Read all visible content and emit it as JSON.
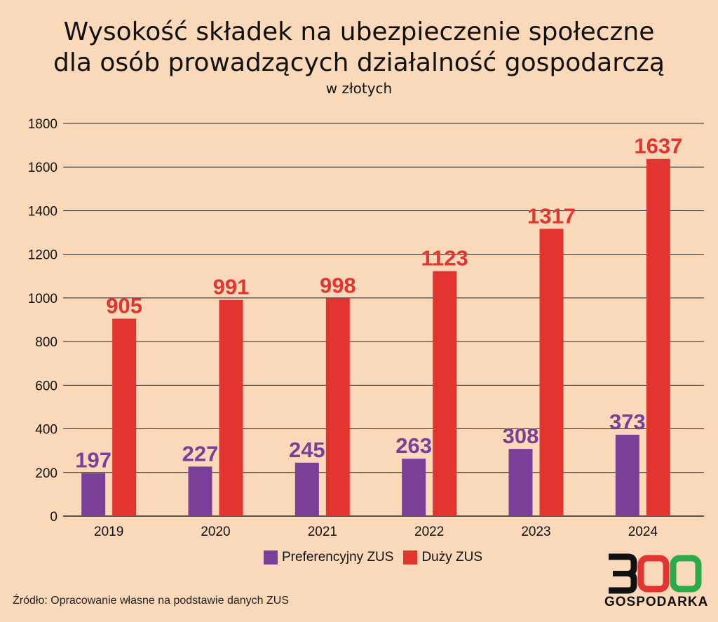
{
  "header": {
    "title_line1": "Wysokość składek na ubezpieczenie społeczne",
    "title_line2": "dla osób prowadzących działalność gospodarczą",
    "subtitle": "w złotych"
  },
  "legend": {
    "items": [
      {
        "label": "Preferencyjny ZUS",
        "color": "#7a3f96"
      },
      {
        "label": "Duży ZUS",
        "color": "#e33530"
      }
    ]
  },
  "source": "Źródło: Opracowanie własne na podstawie danych ZUS",
  "logo": {
    "text": "GOSPODARKA",
    "digits": "300"
  },
  "chart_data": {
    "type": "bar",
    "categories": [
      "2019",
      "2020",
      "2021",
      "2022",
      "2023",
      "2024"
    ],
    "series": [
      {
        "name": "Preferencyjny ZUS",
        "color": "#7a3f96",
        "values": [
          197,
          227,
          245,
          263,
          308,
          373
        ]
      },
      {
        "name": "Duży ZUS",
        "color": "#e33530",
        "values": [
          905,
          991,
          998,
          1123,
          1317,
          1637
        ]
      }
    ],
    "ylim": [
      0,
      1800
    ],
    "yticks": [
      0,
      200,
      400,
      600,
      800,
      1000,
      1200,
      1400,
      1600,
      1800
    ],
    "grid": true,
    "legend_position": "bottom-center"
  }
}
